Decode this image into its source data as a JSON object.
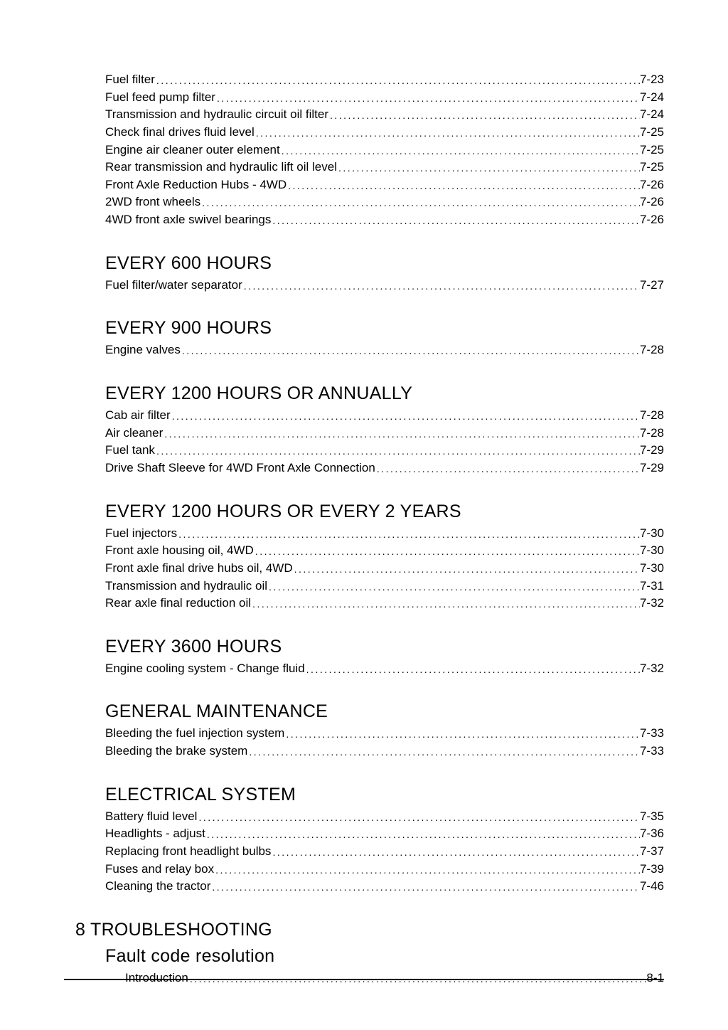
{
  "top_entries": [
    {
      "label": "Fuel filter",
      "page": "7-23"
    },
    {
      "label": "Fuel feed pump filter",
      "page": "7-24"
    },
    {
      "label": "Transmission and hydraulic circuit oil filter",
      "page": "7-24"
    },
    {
      "label": "Check final drives fluid level",
      "page": "7-25"
    },
    {
      "label": "Engine air cleaner outer element",
      "page": "7-25"
    },
    {
      "label": "Rear transmission and hydraulic lift oil level",
      "page": "7-25"
    },
    {
      "label": "Front Axle Reduction Hubs - 4WD",
      "page": "7-26"
    },
    {
      "label": "2WD front wheels",
      "page": "7-26"
    },
    {
      "label": "4WD front axle swivel bearings",
      "page": "7-26"
    }
  ],
  "sections": [
    {
      "title": "EVERY 600 HOURS",
      "entries": [
        {
          "label": "Fuel filter/water separator",
          "page": "7-27"
        }
      ]
    },
    {
      "title": "EVERY 900 HOURS",
      "entries": [
        {
          "label": "Engine valves",
          "page": "7-28"
        }
      ]
    },
    {
      "title": "EVERY 1200 HOURS OR ANNUALLY",
      "entries": [
        {
          "label": "Cab air filter",
          "page": "7-28"
        },
        {
          "label": "Air cleaner",
          "page": "7-28"
        },
        {
          "label": "Fuel tank",
          "page": "7-29"
        },
        {
          "label": "Drive Shaft Sleeve for 4WD Front Axle Connection",
          "page": "7-29"
        }
      ]
    },
    {
      "title": "EVERY 1200 HOURS OR EVERY 2 YEARS",
      "entries": [
        {
          "label": "Fuel injectors",
          "page": "7-30"
        },
        {
          "label": "Front axle housing oil, 4WD",
          "page": "7-30"
        },
        {
          "label": "Front axle final drive hubs oil, 4WD",
          "page": "7-30"
        },
        {
          "label": "Transmission and hydraulic oil",
          "page": "7-31"
        },
        {
          "label": "Rear axle final reduction oil",
          "page": "7-32"
        }
      ]
    },
    {
      "title": "EVERY 3600 HOURS",
      "entries": [
        {
          "label": "Engine cooling system - Change fluid",
          "page": "7-32"
        }
      ]
    },
    {
      "title": "GENERAL MAINTENANCE",
      "entries": [
        {
          "label": "Bleeding the fuel injection system",
          "page": "7-33"
        },
        {
          "label": "Bleeding the brake system",
          "page": "7-33"
        }
      ]
    },
    {
      "title": "ELECTRICAL SYSTEM",
      "entries": [
        {
          "label": "Battery fluid level",
          "page": "7-35"
        },
        {
          "label": "Headlights - adjust",
          "page": "7-36"
        },
        {
          "label": "Replacing front headlight bulbs",
          "page": "7-37"
        },
        {
          "label": "Fuses and relay box",
          "page": "7-39"
        },
        {
          "label": "Cleaning the tractor",
          "page": "7-46"
        }
      ]
    }
  ],
  "chapter": {
    "title": "8 TROUBLESHOOTING",
    "subsection": {
      "title": "Fault code resolution",
      "entries": [
        {
          "label": "Introduction",
          "page": "8-1"
        }
      ]
    }
  }
}
